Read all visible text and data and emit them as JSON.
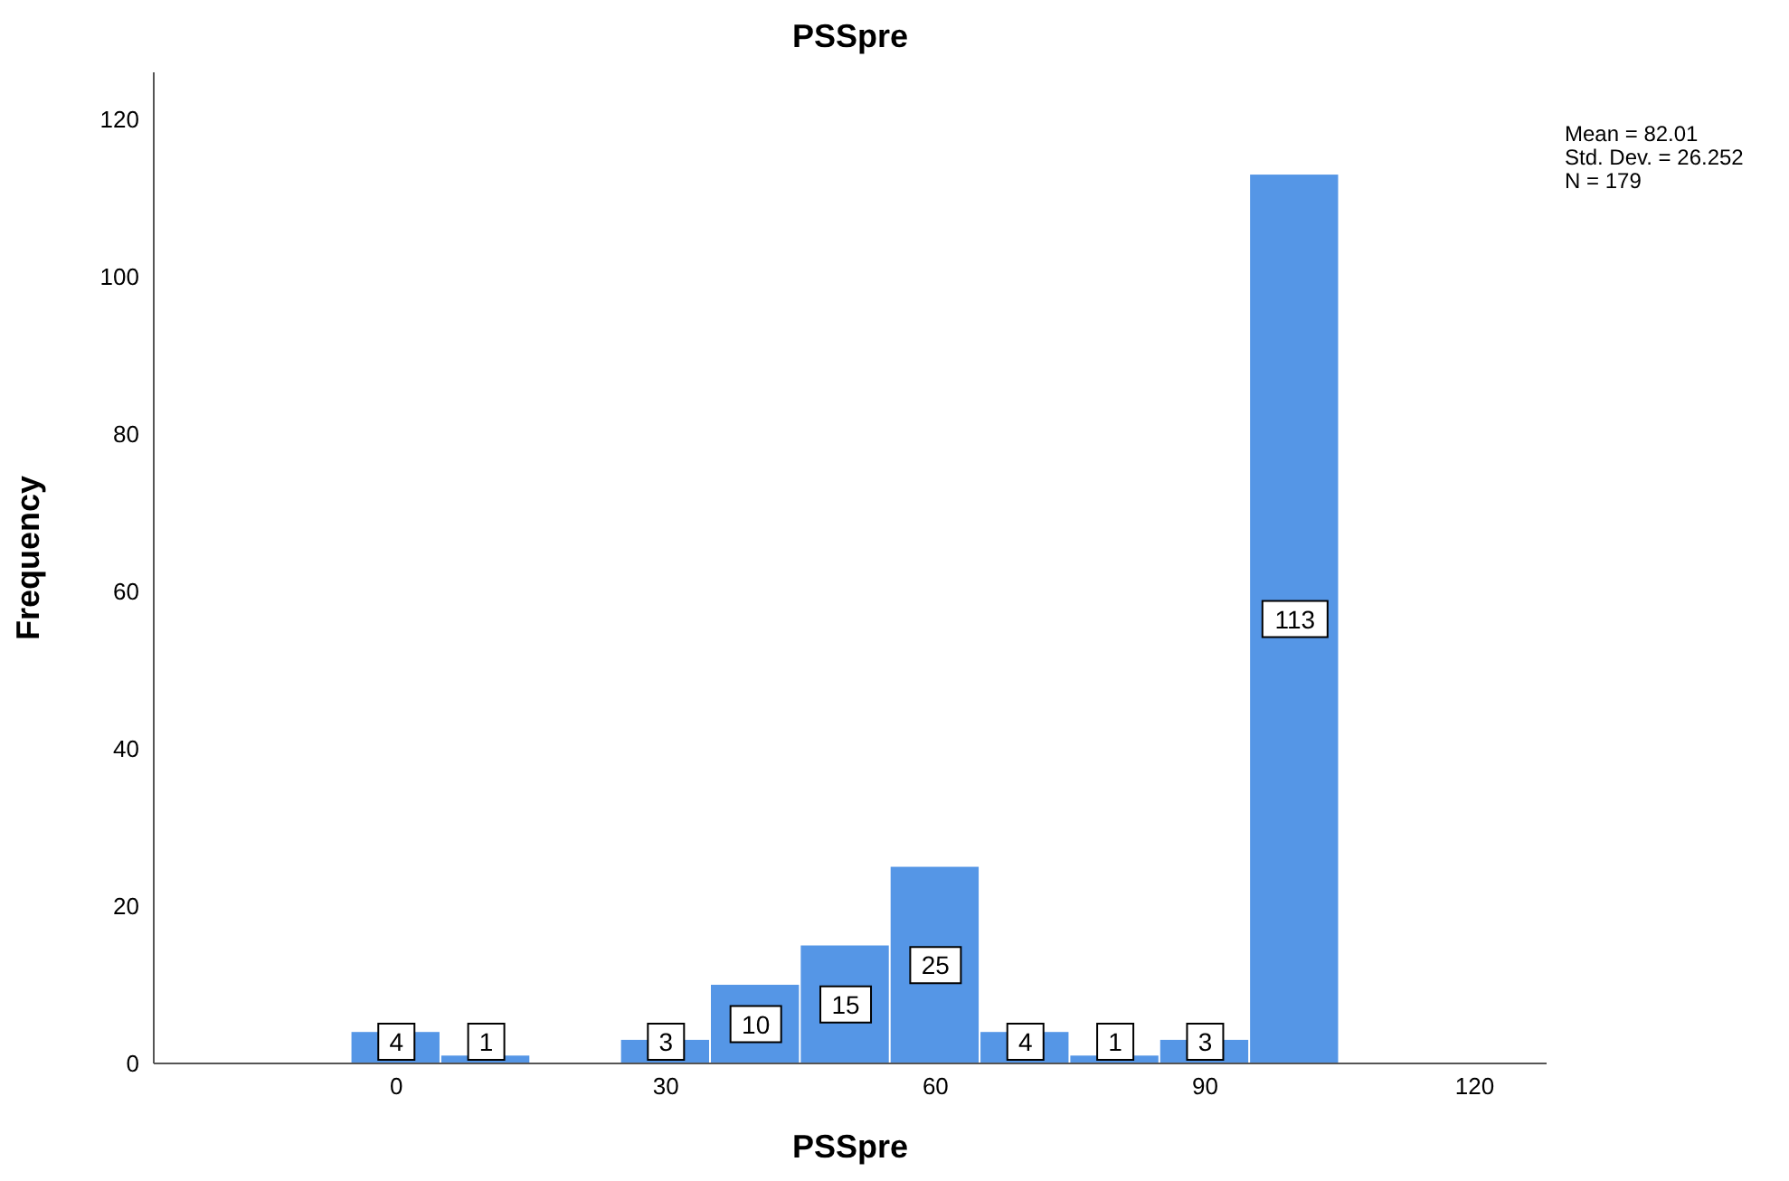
{
  "chart_data": {
    "type": "histogram",
    "title": "PSSpre",
    "xlabel": "PSSpre",
    "ylabel": "Frequency",
    "bins": [
      -5,
      5,
      15,
      25,
      35,
      45,
      55,
      65,
      75,
      85,
      95,
      105
    ],
    "values": [
      4,
      1,
      0,
      3,
      10,
      15,
      25,
      4,
      1,
      3,
      113
    ],
    "value_labels": [
      "4",
      "1",
      null,
      "3",
      "10",
      "15",
      "25",
      "4",
      "1",
      "3",
      "113"
    ],
    "color": "#5596e6",
    "xlim": [
      -27,
      128
    ],
    "xticks": [
      0,
      30,
      60,
      90,
      120
    ],
    "ylim": [
      0,
      126
    ],
    "yticks": [
      0,
      20,
      40,
      60,
      80,
      100,
      120
    ],
    "grid": false,
    "annotations": [
      "Mean = 82.01",
      "Std. Dev. = 26.252",
      "N = 179"
    ]
  }
}
